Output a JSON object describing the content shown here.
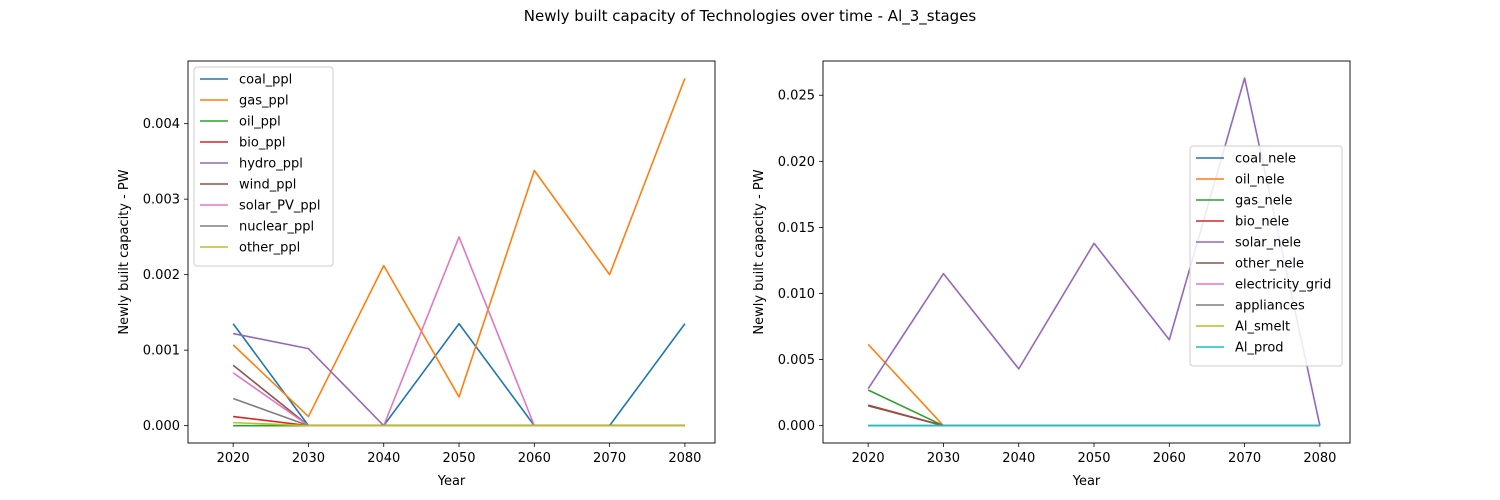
{
  "figure": {
    "title": "Newly built capacity of Technologies over time - Al_3_stages"
  },
  "chart_data": [
    {
      "type": "line",
      "title": "",
      "xlabel": "Year",
      "ylabel": "Newly built capacity - PW",
      "x": [
        2020,
        2030,
        2040,
        2050,
        2060,
        2070,
        2080
      ],
      "xlim": [
        2014,
        2084
      ],
      "ylim": [
        -0.00023,
        0.00483
      ],
      "xticks": [
        2020,
        2030,
        2040,
        2050,
        2060,
        2070,
        2080
      ],
      "yticks": [
        0.0,
        0.001,
        0.002,
        0.003,
        0.004
      ],
      "ytick_labels": [
        "0.000",
        "0.001",
        "0.002",
        "0.003",
        "0.004"
      ],
      "legend_position": "upper-left",
      "series": [
        {
          "name": "coal_ppl",
          "color": "#1f77b4",
          "values": [
            0.00135,
            0.0,
            0.0,
            0.00135,
            0.0,
            0.0,
            0.00135
          ]
        },
        {
          "name": "gas_ppl",
          "color": "#ff7f0e",
          "values": [
            0.00107,
            0.00012,
            0.00212,
            0.00038,
            0.00338,
            0.002,
            0.0046
          ]
        },
        {
          "name": "oil_ppl",
          "color": "#2ca02c",
          "values": [
            0.0,
            0.0,
            0.0,
            0.0,
            0.0,
            0.0,
            0.0
          ]
        },
        {
          "name": "bio_ppl",
          "color": "#d62728",
          "values": [
            0.00012,
            0.0,
            0.0,
            0.0,
            0.0,
            0.0,
            0.0
          ]
        },
        {
          "name": "hydro_ppl",
          "color": "#9467bd",
          "values": [
            0.00122,
            0.00102,
            0.0,
            0.0,
            0.0,
            0.0,
            0.0
          ]
        },
        {
          "name": "wind_ppl",
          "color": "#8c564b",
          "values": [
            0.0008,
            0.0,
            0.0,
            0.0,
            0.0,
            0.0,
            0.0
          ]
        },
        {
          "name": "solar_PV_ppl",
          "color": "#e377c2",
          "values": [
            0.0007,
            0.0,
            0.0,
            0.0025,
            0.0,
            0.0,
            0.0
          ]
        },
        {
          "name": "nuclear_ppl",
          "color": "#7f7f7f",
          "values": [
            0.00036,
            0.0,
            0.0,
            0.0,
            0.0,
            0.0,
            0.0
          ]
        },
        {
          "name": "other_ppl",
          "color": "#bcbd22",
          "values": [
            4e-05,
            0.0,
            0.0,
            0.0,
            0.0,
            0.0,
            0.0
          ]
        }
      ]
    },
    {
      "type": "line",
      "title": "",
      "xlabel": "Year",
      "ylabel": "Newly built capacity - PW",
      "x": [
        2020,
        2030,
        2040,
        2050,
        2060,
        2070,
        2080
      ],
      "xlim": [
        2014,
        2084
      ],
      "ylim": [
        -0.00131,
        0.02759
      ],
      "xticks": [
        2020,
        2030,
        2040,
        2050,
        2060,
        2070,
        2080
      ],
      "yticks": [
        0.0,
        0.005,
        0.01,
        0.015,
        0.02,
        0.025
      ],
      "ytick_labels": [
        "0.000",
        "0.005",
        "0.010",
        "0.015",
        "0.020",
        "0.025"
      ],
      "legend_position": "center-right",
      "series": [
        {
          "name": "coal_nele",
          "color": "#1f77b4",
          "values": [
            0.0,
            0.0,
            0.0,
            0.0,
            0.0,
            0.0,
            0.0
          ]
        },
        {
          "name": "oil_nele",
          "color": "#ff7f0e",
          "values": [
            0.00615,
            0.0,
            0.0,
            0.0,
            0.0,
            0.0,
            0.0
          ]
        },
        {
          "name": "gas_nele",
          "color": "#2ca02c",
          "values": [
            0.0027,
            0.0,
            0.0,
            0.0,
            0.0,
            0.0,
            0.0
          ]
        },
        {
          "name": "bio_nele",
          "color": "#d62728",
          "values": [
            0.00155,
            0.0,
            0.0,
            0.0,
            0.0,
            0.0,
            0.0
          ]
        },
        {
          "name": "solar_nele",
          "color": "#9467bd",
          "values": [
            0.0028,
            0.0115,
            0.0043,
            0.0138,
            0.0065,
            0.0263,
            0.0
          ]
        },
        {
          "name": "other_nele",
          "color": "#8c564b",
          "values": [
            0.0015,
            0.0,
            0.0,
            0.0,
            0.0,
            0.0,
            0.0
          ]
        },
        {
          "name": "electricity_grid",
          "color": "#e377c2",
          "values": [
            0.0,
            0.0,
            0.0,
            0.0,
            0.0,
            0.0,
            0.0
          ]
        },
        {
          "name": "appliances",
          "color": "#7f7f7f",
          "values": [
            0.0,
            0.0,
            0.0,
            0.0,
            0.0,
            0.0,
            0.0
          ]
        },
        {
          "name": "Al_smelt",
          "color": "#bcbd22",
          "values": [
            0.0,
            0.0,
            0.0,
            0.0,
            0.0,
            0.0,
            0.0
          ]
        },
        {
          "name": "Al_prod",
          "color": "#17becf",
          "values": [
            0.0,
            0.0,
            0.0,
            0.0,
            0.0,
            0.0,
            0.0
          ]
        }
      ]
    }
  ]
}
